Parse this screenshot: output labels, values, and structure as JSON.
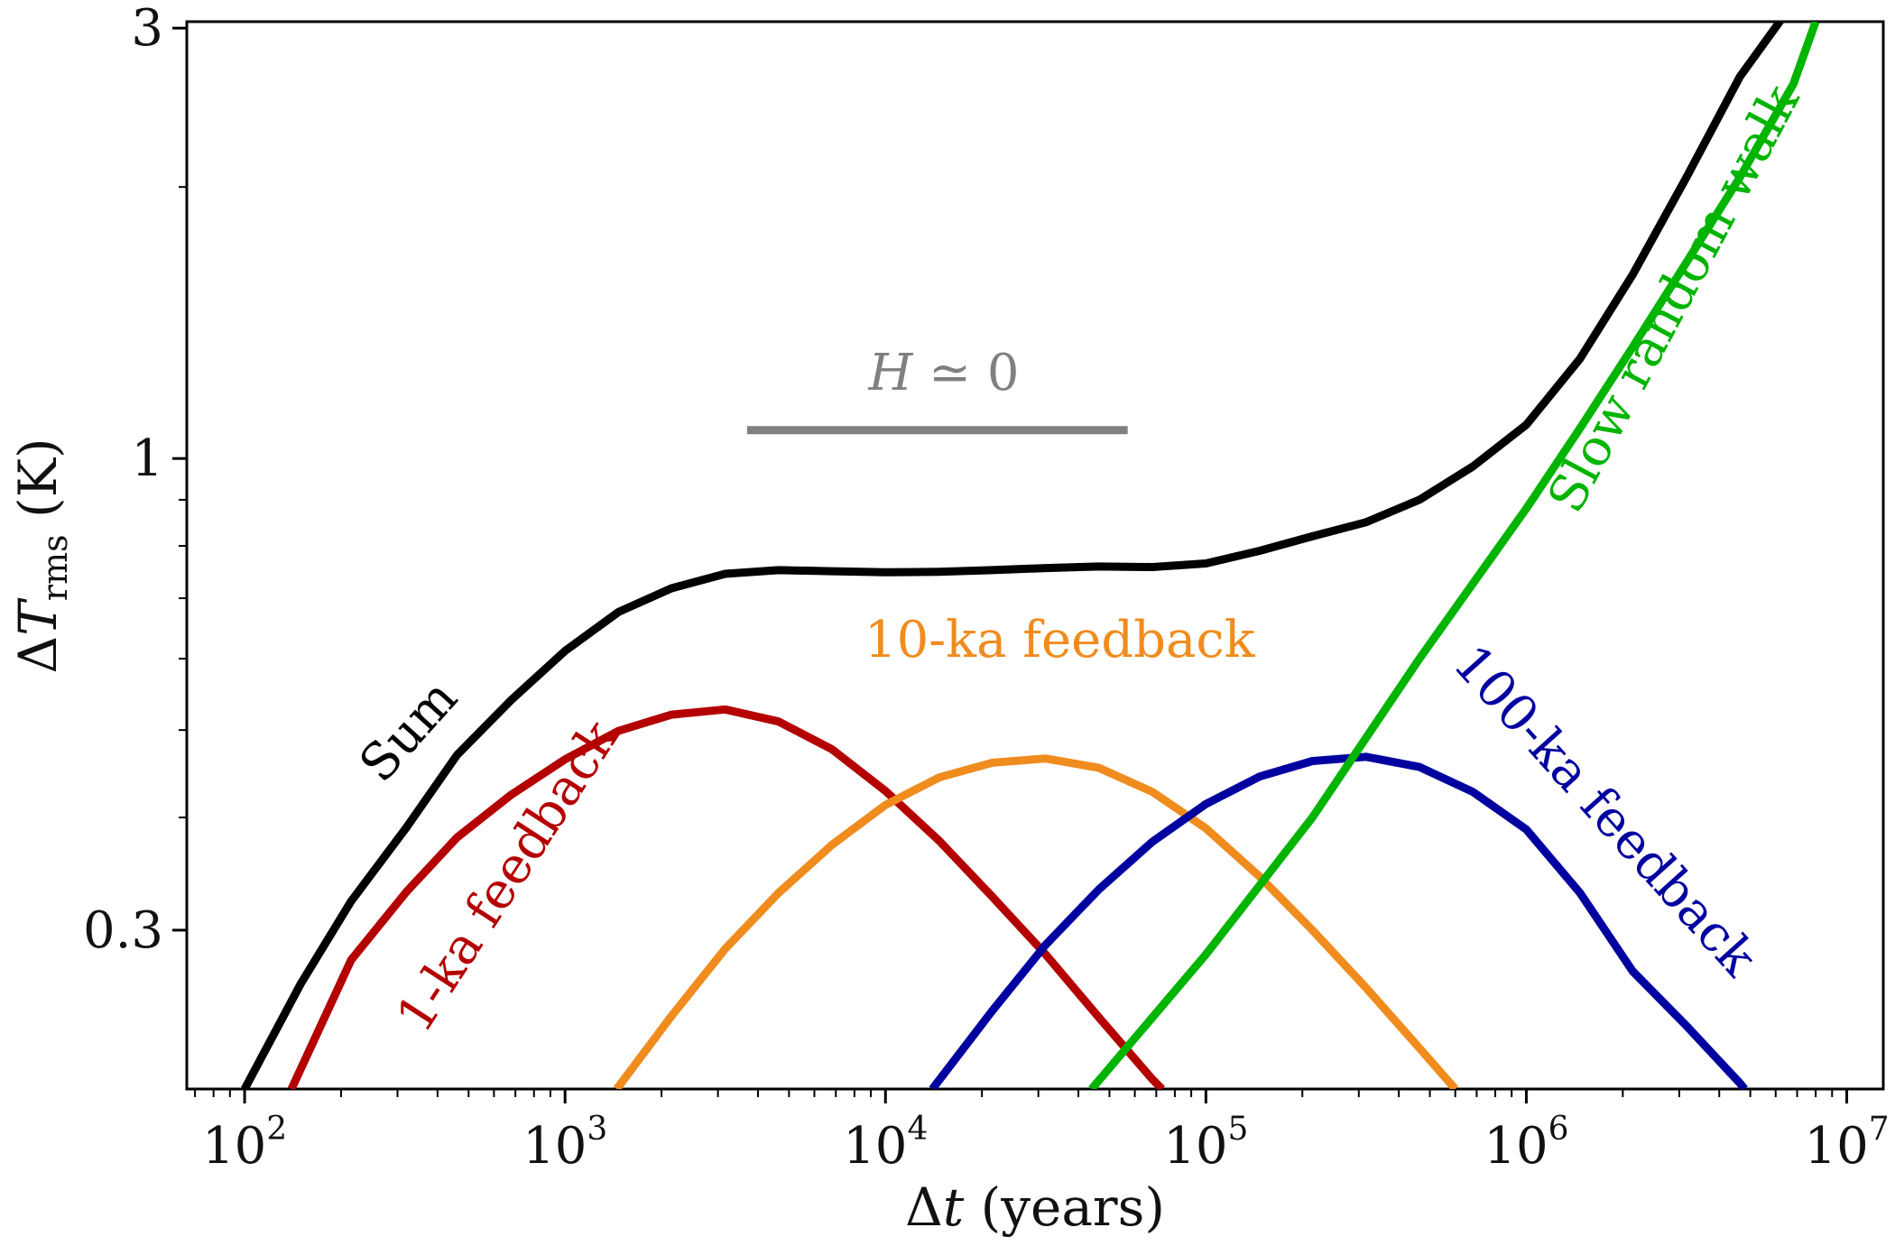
{
  "chart_data": {
    "type": "line",
    "xlabel": {
      "symbol": "Δ",
      "var": "t",
      "unit": "(years)"
    },
    "ylabel": {
      "symbol": "Δ",
      "var": "T",
      "sub": "rms",
      "unit": "(K)"
    },
    "xscale": "log",
    "yscale": "log",
    "xlim": [
      66,
      13000000
    ],
    "ylim": [
      0.2,
      3.05
    ],
    "grid": false,
    "x_ticks": [
      {
        "value": 100,
        "base": "10",
        "exp": "2"
      },
      {
        "value": 1000,
        "base": "10",
        "exp": "3"
      },
      {
        "value": 10000,
        "base": "10",
        "exp": "4"
      },
      {
        "value": 100000,
        "base": "10",
        "exp": "5"
      },
      {
        "value": 1000000,
        "base": "10",
        "exp": "6"
      },
      {
        "value": 10000000,
        "base": "10",
        "exp": "7"
      }
    ],
    "y_ticks": [
      {
        "value": 0.3,
        "label": "0.3"
      },
      {
        "value": 1,
        "label": "1"
      },
      {
        "value": 3,
        "label": "3"
      }
    ],
    "y_minor_ticks": [
      0.4,
      0.5,
      0.6,
      0.7,
      0.8,
      0.9,
      2
    ],
    "series": [
      {
        "name": "Sum",
        "color": "#000000",
        "x": [
          100,
          150,
          215,
          320,
          460,
          680,
          1000,
          1470,
          2150,
          3160,
          4640,
          6810,
          10000,
          14700,
          21500,
          31600,
          46400,
          68100,
          100000,
          147000,
          215000,
          316000,
          464000,
          681000,
          1000000,
          1470000,
          2150000,
          3160000,
          4640000,
          6810000
        ],
        "y": [
          0.2,
          0.262,
          0.323,
          0.39,
          0.469,
          0.54,
          0.612,
          0.676,
          0.718,
          0.745,
          0.752,
          0.75,
          0.748,
          0.749,
          0.752,
          0.756,
          0.759,
          0.758,
          0.765,
          0.79,
          0.82,
          0.85,
          0.9,
          0.98,
          1.09,
          1.29,
          1.6,
          2.05,
          2.65,
          3.2
        ]
      },
      {
        "name": "1-ka feedback",
        "color": "#b40000",
        "x": [
          140,
          215,
          320,
          460,
          680,
          1000,
          1470,
          2150,
          3160,
          4640,
          6810,
          10000,
          14700,
          21500,
          31600,
          46400,
          68100,
          73000
        ],
        "y": [
          0.2,
          0.278,
          0.331,
          0.38,
          0.424,
          0.464,
          0.499,
          0.52,
          0.527,
          0.511,
          0.476,
          0.428,
          0.377,
          0.327,
          0.282,
          0.24,
          0.205,
          0.2
        ]
      },
      {
        "name": "10-ka feedback",
        "color": "#f08c1e",
        "x": [
          1450,
          2150,
          3160,
          4640,
          6810,
          10000,
          14700,
          21500,
          31600,
          46400,
          68100,
          100000,
          147000,
          215000,
          316000,
          464000,
          600000
        ],
        "y": [
          0.2,
          0.241,
          0.286,
          0.33,
          0.373,
          0.413,
          0.443,
          0.46,
          0.465,
          0.454,
          0.427,
          0.389,
          0.344,
          0.3,
          0.259,
          0.222,
          0.2
        ]
      },
      {
        "name": "100-ka feedback",
        "color": "#0000a0",
        "x": [
          14000,
          21500,
          31600,
          46400,
          68100,
          100000,
          147000,
          215000,
          316000,
          464000,
          681000,
          1000000,
          1470000,
          2150000,
          3160000,
          4640000,
          4800000
        ],
        "y": [
          0.2,
          0.244,
          0.289,
          0.333,
          0.376,
          0.414,
          0.444,
          0.462,
          0.467,
          0.455,
          0.427,
          0.388,
          0.33,
          0.27,
          0.235,
          0.203,
          0.2
        ]
      },
      {
        "name": "Slow random walk",
        "color": "#00b400",
        "x": [
          44000,
          100000,
          215000,
          464000,
          1000000,
          1470000,
          2150000,
          3160000,
          4640000,
          6810000,
          8000000
        ],
        "y": [
          0.2,
          0.282,
          0.4,
          0.6,
          0.88,
          1.08,
          1.33,
          1.65,
          2.05,
          2.6,
          3.05
        ]
      }
    ],
    "reference_line": {
      "color": "#808080",
      "x": [
        3700,
        57000
      ],
      "y": [
        1.075,
        1.075
      ]
    },
    "annotations": {
      "h_label": {
        "var": "H",
        "rel": "≃",
        "value": "0",
        "color": "#808080"
      },
      "sum": {
        "text": "Sum",
        "color": "#000000"
      },
      "fb1": {
        "text": "1-ka feedback",
        "color": "#b40000"
      },
      "fb10": {
        "text": "10-ka feedback",
        "color": "#f08c1e"
      },
      "fb100": {
        "text": "100-ka feedback",
        "color": "#0000a0"
      },
      "srw": {
        "text": "Slow random walk",
        "color": "#00b400"
      }
    }
  }
}
